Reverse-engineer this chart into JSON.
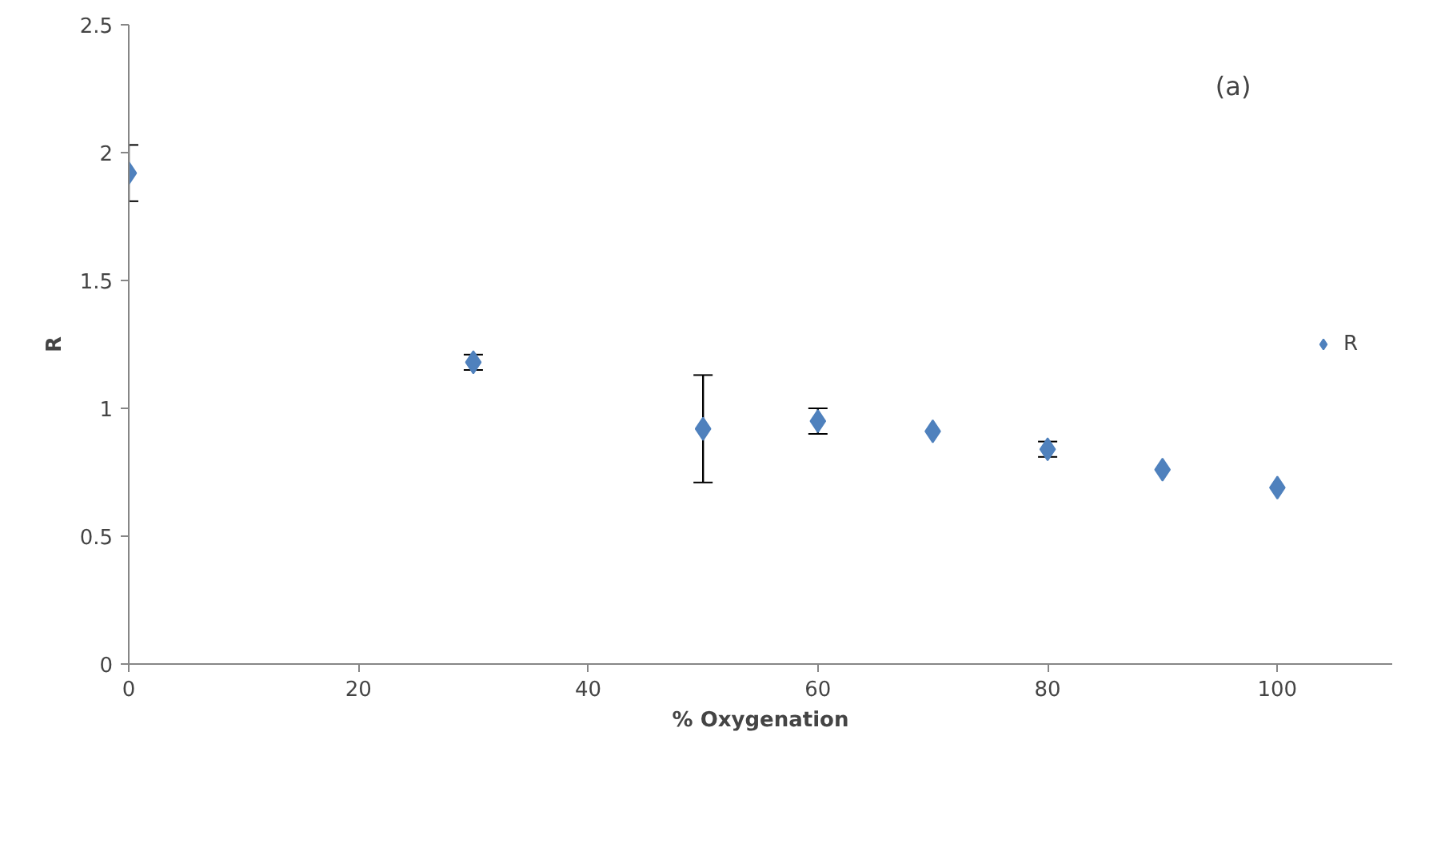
{
  "chart_data": {
    "type": "scatter",
    "xlabel": "% Oxygenation",
    "ylabel": "R",
    "annotations": [
      "(a)"
    ],
    "x": [
      0,
      30,
      50,
      60,
      70,
      80,
      90,
      100
    ],
    "series": [
      {
        "name": "R",
        "color": "#4f81bd",
        "values": [
          1.92,
          1.18,
          0.92,
          0.95,
          0.91,
          0.84,
          0.76,
          0.69
        ],
        "errors": [
          [
            1.81,
            2.03
          ],
          [
            1.15,
            1.21
          ],
          [
            0.71,
            1.13
          ],
          [
            0.9,
            1.0
          ],
          null,
          [
            0.81,
            0.87
          ],
          null,
          null
        ]
      }
    ],
    "xlim": [
      0,
      110
    ],
    "ylim": [
      0,
      2.5
    ],
    "xticks": [
      0,
      20,
      40,
      60,
      80,
      100
    ],
    "yticks": [
      0,
      0.5,
      1,
      1.5,
      2,
      2.5
    ],
    "marker": "diamond",
    "grid": false,
    "legend": "right"
  }
}
